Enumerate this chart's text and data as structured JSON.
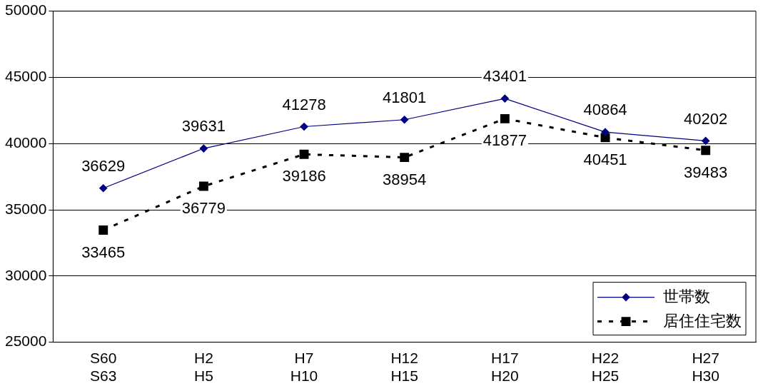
{
  "chart_data": {
    "type": "line",
    "categories": [
      "S60\nS63",
      "H2\nH5",
      "H7\nH10",
      "H12\nH15",
      "H17\nH20",
      "H22\nH25",
      "H27\nH30"
    ],
    "series": [
      {
        "name": "世帯数",
        "color": "#000080",
        "marker": "diamond",
        "line_style": "solid",
        "values": [
          36629,
          39631,
          41278,
          41801,
          43401,
          40864,
          40202
        ]
      },
      {
        "name": "居住住宅数",
        "color": "#000000",
        "marker": "square",
        "line_style": "dashed",
        "values": [
          33465,
          36779,
          39186,
          38954,
          41877,
          40451,
          39483
        ]
      }
    ],
    "ylim": [
      25000,
      50000
    ],
    "yticks": [
      25000,
      30000,
      35000,
      40000,
      45000,
      50000
    ],
    "grid": "y",
    "legend": "bottom right",
    "data_labels": true
  }
}
